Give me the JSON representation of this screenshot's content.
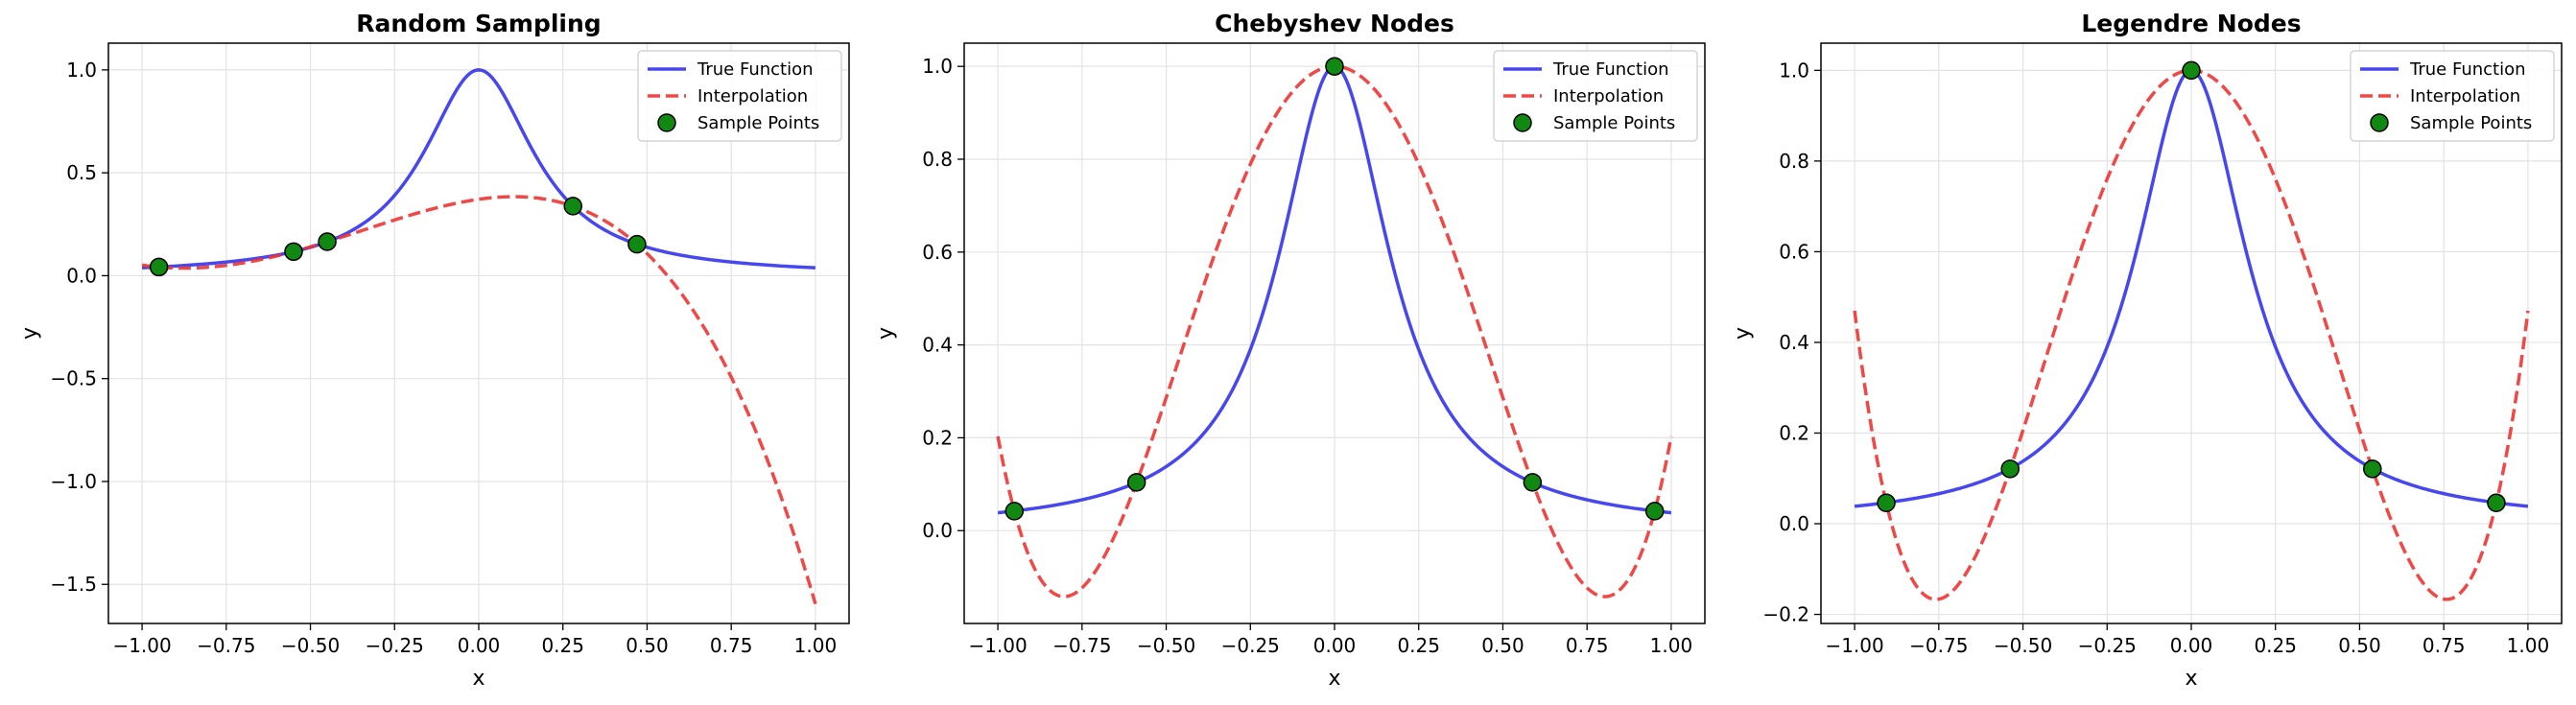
{
  "chart_data": [
    {
      "type": "line",
      "title": "Random Sampling",
      "xlabel": "x",
      "ylabel": "y",
      "xlim": [
        -1.1,
        1.1
      ],
      "ylim": [
        -1.69,
        1.13
      ],
      "xticks": [
        -1.0,
        -0.75,
        -0.5,
        -0.25,
        0.0,
        0.25,
        0.5,
        0.75,
        1.0
      ],
      "xtick_labels": [
        "−1.00",
        "−0.75",
        "−0.50",
        "−0.25",
        "0.00",
        "0.25",
        "0.50",
        "0.75",
        "1.00"
      ],
      "yticks": [
        -1.5,
        -1.0,
        -0.5,
        0.0,
        0.5,
        1.0
      ],
      "ytick_labels": [
        "−1.5",
        "−1.0",
        "−0.5",
        "0.0",
        "0.5",
        "1.0"
      ],
      "grid": true,
      "legend": "top-right",
      "legend_entries": [
        "True Function",
        "Interpolation",
        "Sample Points"
      ],
      "series": [
        {
          "name": "True Function",
          "style": "solid",
          "color": "#3333ee",
          "function": "1/(1+25x^2)",
          "x_range": [
            -1,
            1
          ]
        },
        {
          "name": "Interpolation",
          "style": "dashed",
          "color": "#ee3333",
          "interpolant_of": "Sample Points",
          "x_range": [
            -1,
            1
          ]
        },
        {
          "name": "Sample Points",
          "style": "marker",
          "color": "#118811",
          "x": [
            -0.95,
            -0.55,
            -0.45,
            0.28,
            0.47
          ],
          "y": [
            0.042,
            0.117,
            0.165,
            0.338,
            0.153
          ]
        }
      ]
    },
    {
      "type": "line",
      "title": "Chebyshev Nodes",
      "xlabel": "x",
      "ylabel": "y",
      "xlim": [
        -1.1,
        1.1
      ],
      "ylim": [
        -0.2,
        1.05
      ],
      "xticks": [
        -1.0,
        -0.75,
        -0.5,
        -0.25,
        0.0,
        0.25,
        0.5,
        0.75,
        1.0
      ],
      "xtick_labels": [
        "−1.00",
        "−0.75",
        "−0.50",
        "−0.25",
        "0.00",
        "0.25",
        "0.50",
        "0.75",
        "1.00"
      ],
      "yticks": [
        0.0,
        0.2,
        0.4,
        0.6,
        0.8,
        1.0
      ],
      "ytick_labels": [
        "0.0",
        "0.2",
        "0.4",
        "0.6",
        "0.8",
        "1.0"
      ],
      "grid": true,
      "legend": "top-right",
      "legend_entries": [
        "True Function",
        "Interpolation",
        "Sample Points"
      ],
      "series": [
        {
          "name": "True Function",
          "style": "solid",
          "color": "#3333ee",
          "function": "1/(1+25x^2)",
          "x_range": [
            -1,
            1
          ]
        },
        {
          "name": "Interpolation",
          "style": "dashed",
          "color": "#ee3333",
          "interpolant_of": "Sample Points",
          "x_range": [
            -1,
            1
          ]
        },
        {
          "name": "Sample Points",
          "style": "marker",
          "color": "#118811",
          "x": [
            -0.951,
            -0.588,
            0.0,
            0.588,
            0.951
          ],
          "y": [
            0.042,
            0.104,
            1.0,
            0.104,
            0.042
          ]
        }
      ]
    },
    {
      "type": "line",
      "title": "Legendre Nodes",
      "xlabel": "x",
      "ylabel": "y",
      "xlim": [
        -1.1,
        1.1
      ],
      "ylim": [
        -0.22,
        1.06
      ],
      "xticks": [
        -1.0,
        -0.75,
        -0.5,
        -0.25,
        0.0,
        0.25,
        0.5,
        0.75,
        1.0
      ],
      "xtick_labels": [
        "−1.00",
        "−0.75",
        "−0.50",
        "−0.25",
        "0.00",
        "0.25",
        "0.50",
        "0.75",
        "1.00"
      ],
      "yticks": [
        -0.2,
        0.0,
        0.2,
        0.4,
        0.6,
        0.8,
        1.0
      ],
      "ytick_labels": [
        "−0.2",
        "0.0",
        "0.2",
        "0.4",
        "0.6",
        "0.8",
        "1.0"
      ],
      "grid": true,
      "legend": "top-right",
      "legend_entries": [
        "True Function",
        "Interpolation",
        "Sample Points"
      ],
      "series": [
        {
          "name": "True Function",
          "style": "solid",
          "color": "#3333ee",
          "function": "1/(1+25x^2)",
          "x_range": [
            -1,
            1
          ]
        },
        {
          "name": "Interpolation",
          "style": "dashed",
          "color": "#ee3333",
          "interpolant_of": "Sample Points",
          "x_range": [
            -1,
            1
          ]
        },
        {
          "name": "Sample Points",
          "style": "marker",
          "color": "#118811",
          "x": [
            -0.906,
            -0.538,
            0.0,
            0.538,
            0.906
          ],
          "y": [
            0.046,
            0.121,
            1.0,
            0.121,
            0.046
          ]
        }
      ]
    }
  ]
}
